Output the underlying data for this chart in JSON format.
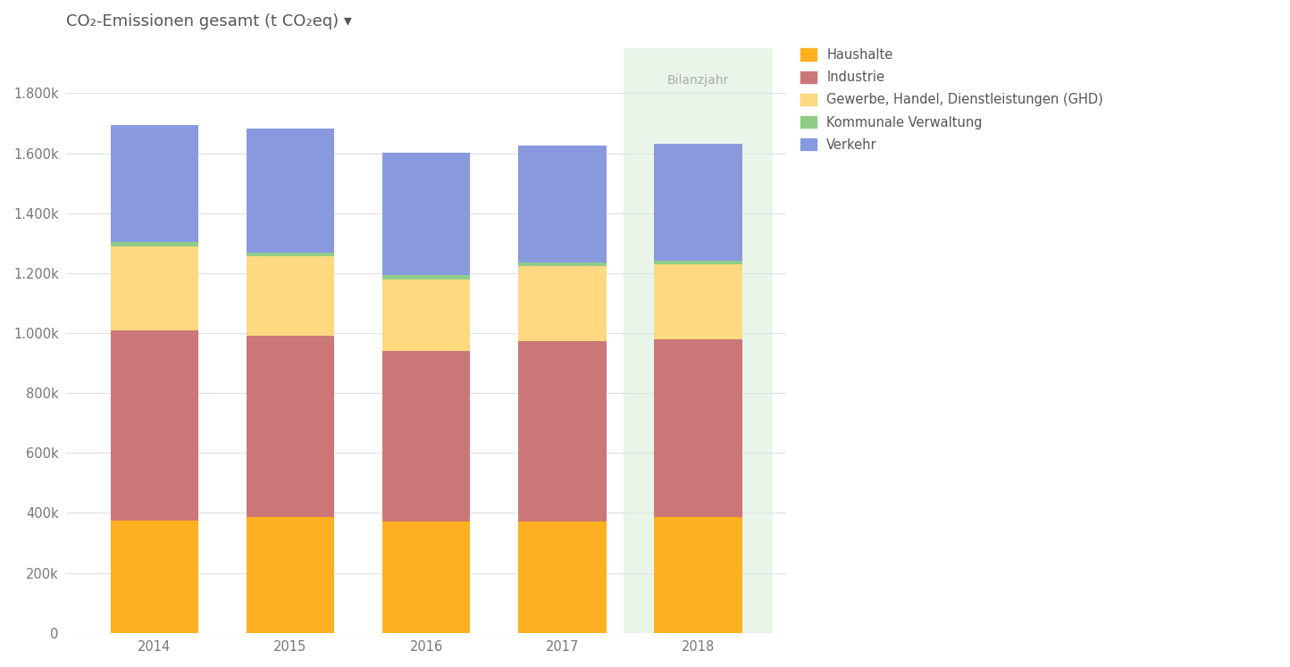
{
  "title": "CO₂-Emissionen gesamt (t CO₂eq) ▾",
  "years": [
    2014,
    2015,
    2016,
    2017,
    2018
  ],
  "categories": [
    "Haushalte",
    "Industrie",
    "Gewerbe, Handel, Dienstleistungen (GHD)",
    "Kommunale Verwaltung",
    "Verkehr"
  ],
  "colors": [
    "#FFB020",
    "#CC7777",
    "#FFD980",
    "#90CC88",
    "#8899DD"
  ],
  "data": {
    "Haushalte": [
      375000,
      385000,
      370000,
      372000,
      385000
    ],
    "Industrie": [
      635000,
      605000,
      570000,
      600000,
      595000
    ],
    "Gewerbe, Handel, Dienstleistungen (GHD)": [
      280000,
      265000,
      240000,
      250000,
      250000
    ],
    "Kommunale Verwaltung": [
      15000,
      13000,
      12000,
      12000,
      12000
    ],
    "Verkehr": [
      390000,
      415000,
      410000,
      390000,
      390000
    ]
  },
  "highlight_year": 2018,
  "highlight_label": "Bilanzjahr",
  "highlight_color": "#EAF5EA",
  "ylim": [
    0,
    1950000
  ],
  "yticks": [
    0,
    200000,
    400000,
    600000,
    800000,
    1000000,
    1200000,
    1400000,
    1600000,
    1800000
  ],
  "ytick_labels": [
    "0",
    "200k",
    "400k",
    "600k",
    "800k",
    "1.000k",
    "1.200k",
    "1.400k",
    "1.600k",
    "1.800k"
  ],
  "background_color": "#FFFFFF",
  "grid_color": "#E0E0E0",
  "title_fontsize": 13,
  "legend_fontsize": 10.5,
  "tick_fontsize": 10.5,
  "bar_width": 0.65,
  "bilanzjahr_fontsize": 10,
  "bilanzjahr_color": "#AAAAAA"
}
